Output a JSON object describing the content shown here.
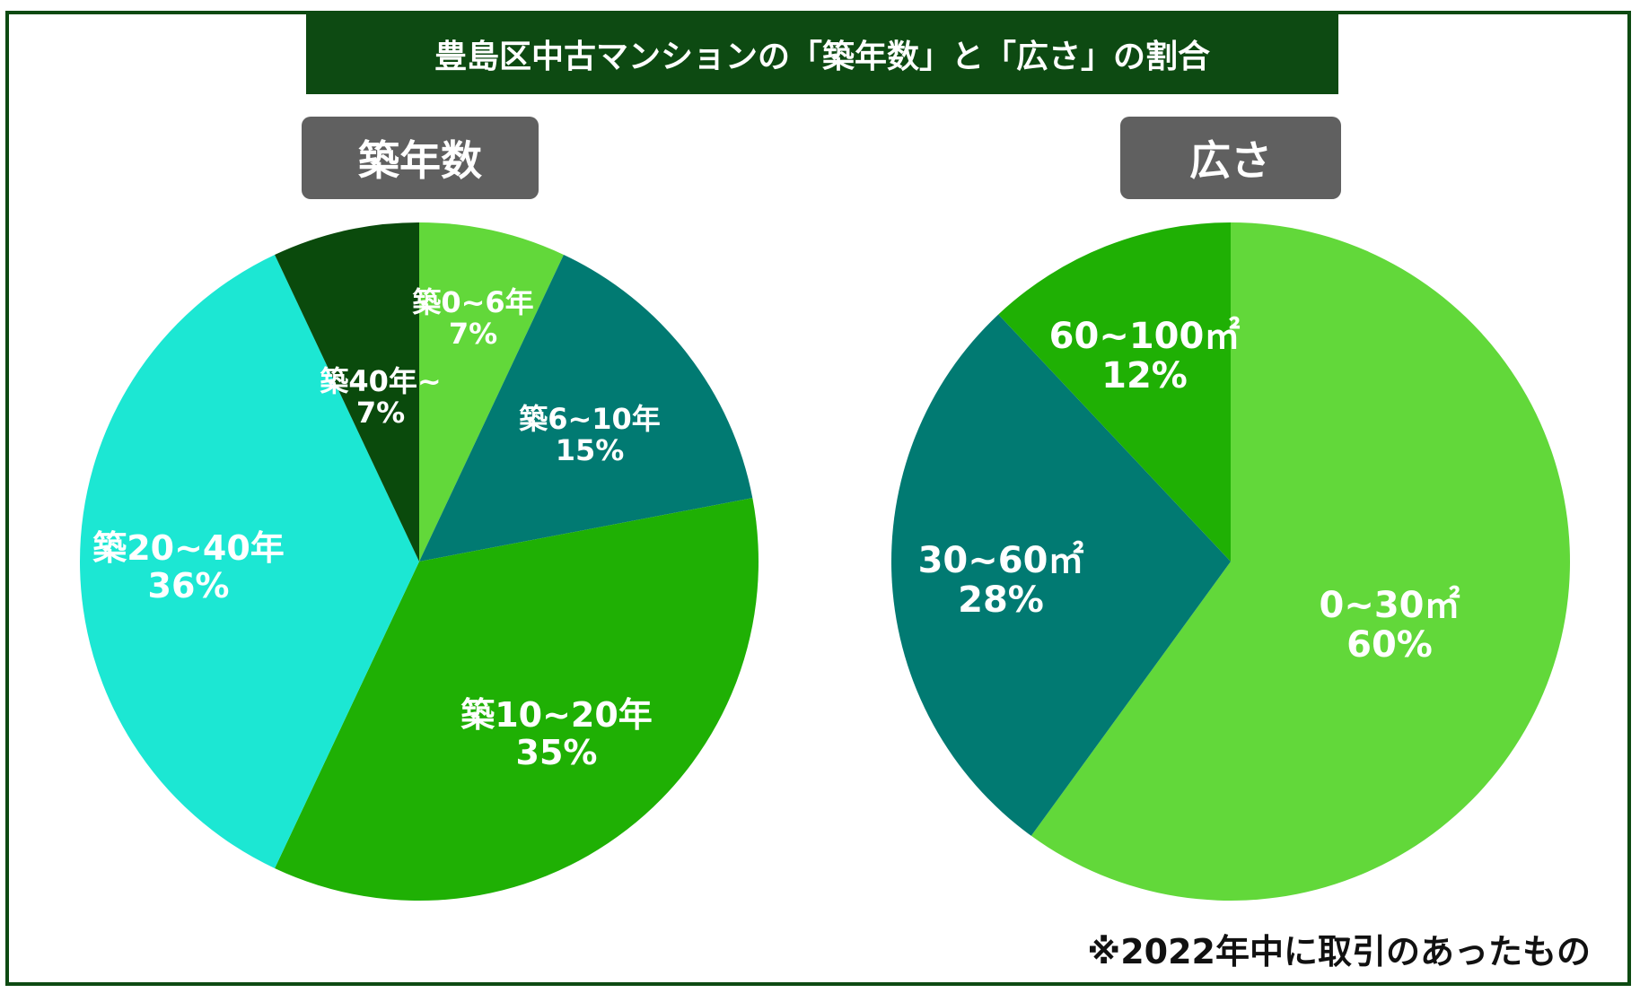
{
  "title": "豊島区中古マンションの「築年数」と「広さ」の割合",
  "note": "※2022年中に取引のあったもの",
  "colors": {
    "dark_green": "#0d4a12",
    "pill_gray": "#606060",
    "light_green": "#62d83a",
    "teal": "#017a72",
    "green": "#1fb004",
    "cyan": "#1ce7d3",
    "forest": "#0a4a0c"
  },
  "chart_data": [
    {
      "type": "pie",
      "title": "築年数",
      "slices": [
        {
          "label": "築0~6年",
          "value": 7,
          "display": "7%",
          "color": "#62d83a"
        },
        {
          "label": "築6~10年",
          "value": 15,
          "display": "15%",
          "color": "#017a72"
        },
        {
          "label": "築10~20年",
          "value": 35,
          "display": "35%",
          "color": "#1fb004"
        },
        {
          "label": "築20~40年",
          "value": 36,
          "display": "36%",
          "color": "#1ce7d3"
        },
        {
          "label": "築40年~",
          "value": 7,
          "display": "7%",
          "color": "#0a4a0c"
        }
      ]
    },
    {
      "type": "pie",
      "title": "広さ",
      "slices": [
        {
          "label": "0~30㎡",
          "value": 60,
          "display": "60%",
          "color": "#62d83a"
        },
        {
          "label": "30~60㎡",
          "value": 28,
          "display": "28%",
          "color": "#017a72"
        },
        {
          "label": "60~100㎡",
          "value": 12,
          "display": "12%",
          "color": "#1fb004"
        }
      ]
    }
  ]
}
